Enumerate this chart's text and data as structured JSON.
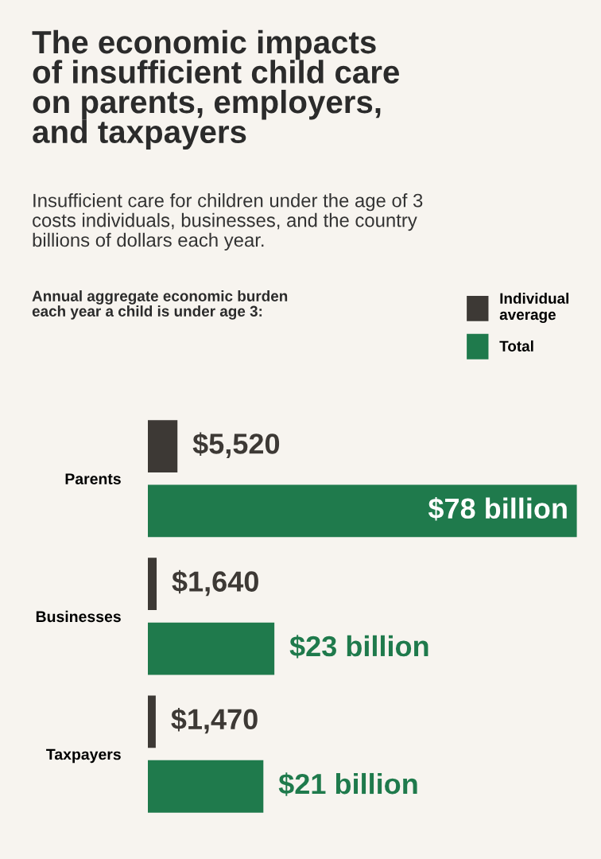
{
  "chart_data": [
    {
      "type": "bar",
      "orientation": "horizontal",
      "title": "The economic impacts\nof insufficient child care\non parents, employers,\nand taxpayers",
      "subtitle": "Insufficient care for children under the age of 3\ncosts individuals, businesses, and the country\nbillions of dollars each year.",
      "annotations": [
        "Annual aggregate economic burden\neach year a child is under age 3:"
      ],
      "categories": [
        null,
        null,
        null
      ],
      "legend": "top right",
      "xlim": [
        0,
        80000
      ],
      "series": [
        {
          "name": "Individual\naverage",
          "color": "#3d3935",
          "values": [
            5520,
            1640,
            1470
          ],
          "value_labels": [
            "$5,520",
            "$1,640",
            "$1,470"
          ]
        }
      ]
    },
    {
      "type": "bar",
      "orientation": "horizontal",
      "categories": [
        "Parents",
        "Businesses",
        "Taxpayers"
      ],
      "legend": "top right",
      "xlim": [
        0,
        78
      ],
      "series": [
        {
          "name": "Total",
          "color": "#1f7a4c",
          "values": [
            78,
            23,
            21
          ],
          "value_labels": [
            "$78 billion",
            "$23 billion",
            "$21 billion"
          ]
        }
      ]
    }
  ]
}
